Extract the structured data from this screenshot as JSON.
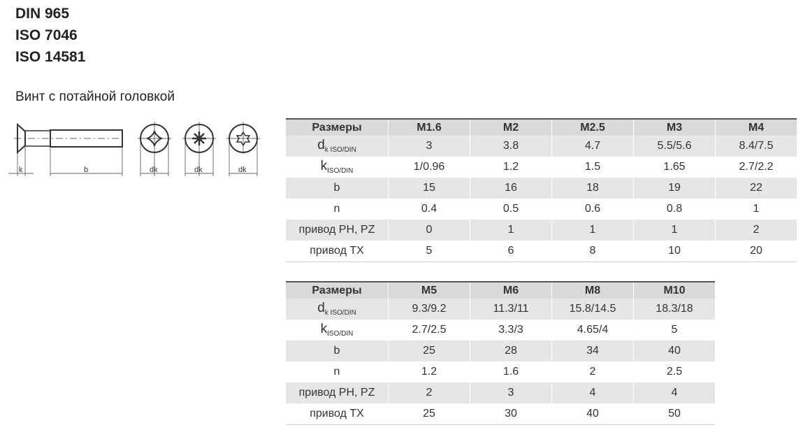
{
  "standards": [
    "DIN 965",
    "ISO 7046",
    "ISO 14581"
  ],
  "subtitle": "Винт с потайной головкой",
  "drawing": {
    "labels": [
      "k",
      "b",
      "dk",
      "dk",
      "dk"
    ],
    "icons": [
      "countersunk-screw-side-view",
      "phillips-head",
      "pozidriv-head",
      "torx-head"
    ]
  },
  "table1": {
    "header": [
      "Размеры",
      "M1.6",
      "M2",
      "M2.5",
      "M3",
      "M4"
    ],
    "rows": [
      {
        "label": "d",
        "sub": "k ISO/DIN",
        "values": [
          "3",
          "3.8",
          "4.7",
          "5.5/5.6",
          "8.4/7.5"
        ]
      },
      {
        "label": "k",
        "sub": "ISO/DIN",
        "values": [
          "1/0.96",
          "1.2",
          "1.5",
          "1.65",
          "2.7/2.2"
        ]
      },
      {
        "label": "b",
        "sub": "",
        "values": [
          "15",
          "16",
          "18",
          "19",
          "22"
        ]
      },
      {
        "label": "n",
        "sub": "",
        "values": [
          "0.4",
          "0.5",
          "0.6",
          "0.8",
          "1"
        ]
      },
      {
        "label": "привод PH, PZ",
        "sub": "",
        "values": [
          "0",
          "1",
          "1",
          "1",
          "2"
        ]
      },
      {
        "label": "привод TX",
        "sub": "",
        "values": [
          "5",
          "6",
          "8",
          "10",
          "20"
        ]
      }
    ]
  },
  "table2": {
    "header": [
      "Размеры",
      "M5",
      "M6",
      "M8",
      "M10"
    ],
    "rows": [
      {
        "label": "d",
        "sub": "k ISO/DIN",
        "values": [
          "9.3/9.2",
          "11.3/11",
          "15.8/14.5",
          "18.3/18"
        ]
      },
      {
        "label": "k",
        "sub": "ISO/DIN",
        "values": [
          "2.7/2.5",
          "3.3/3",
          "4.65/4",
          "5"
        ]
      },
      {
        "label": "b",
        "sub": "",
        "values": [
          "25",
          "28",
          "34",
          "40"
        ]
      },
      {
        "label": "n",
        "sub": "",
        "values": [
          "1.2",
          "1.6",
          "2",
          "2.5"
        ]
      },
      {
        "label": "привод PH, PZ",
        "sub": "",
        "values": [
          "2",
          "3",
          "4",
          "4"
        ]
      },
      {
        "label": "привод TX",
        "sub": "",
        "values": [
          "25",
          "30",
          "40",
          "50"
        ]
      }
    ]
  }
}
